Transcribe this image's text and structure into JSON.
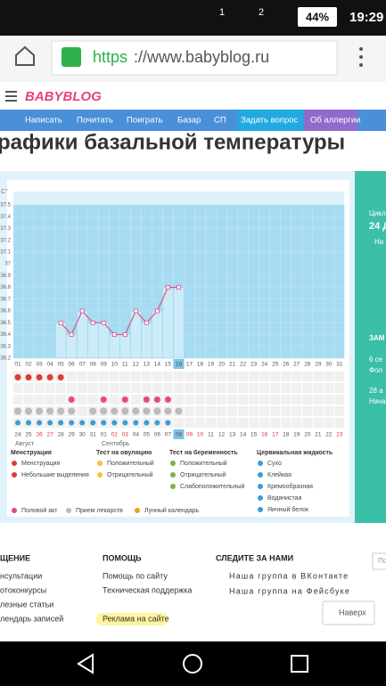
{
  "status": {
    "sim1": "1",
    "sim2": "2",
    "battery": "44%",
    "time": "19:29"
  },
  "browser": {
    "scheme": "https",
    "rest": "://www.babyblog.ru"
  },
  "site": {
    "logo": "BABYBLOG",
    "nav": [
      "Написать",
      "Почитать",
      "Поиграть",
      "Базар",
      "СП",
      "Задать вопрос",
      "Об аллергии"
    ],
    "heading": "рафики базальной температуры"
  },
  "chart_data": {
    "type": "line",
    "y_unit": "С°",
    "categories": [
      "01",
      "02",
      "03",
      "04",
      "05",
      "06",
      "07",
      "08",
      "09",
      "10",
      "11",
      "12",
      "13",
      "14",
      "15",
      "16",
      "17",
      "18",
      "19",
      "20",
      "21",
      "22",
      "23",
      "24",
      "25",
      "26",
      "27",
      "28",
      "29",
      "30",
      "31"
    ],
    "dates": [
      "24",
      "25",
      "26",
      "27",
      "28",
      "29",
      "30",
      "31",
      "01",
      "02",
      "03",
      "04",
      "05",
      "06",
      "07",
      "08",
      "09",
      "10",
      "11",
      "12",
      "13",
      "14",
      "15",
      "16",
      "17",
      "18",
      "19",
      "20",
      "21",
      "22",
      "23"
    ],
    "months": [
      "Август",
      "Сентябрь"
    ],
    "values": [
      null,
      null,
      null,
      null,
      36.5,
      36.4,
      36.6,
      36.5,
      36.5,
      36.4,
      36.4,
      36.6,
      36.5,
      36.6,
      36.8,
      36.8,
      null,
      null,
      null,
      null,
      null,
      null,
      null,
      null,
      null,
      null,
      null,
      null,
      null,
      null,
      null
    ],
    "color": "#e0508a",
    "ylim": [
      36.2,
      37.5
    ],
    "yticks": [
      36.2,
      36.3,
      36.4,
      36.5,
      36.6,
      36.7,
      36.8,
      36.9,
      37,
      37.1,
      37.2,
      37.3,
      37.4,
      37.5
    ],
    "menstruation_days": [
      1,
      2,
      3,
      4,
      5
    ],
    "intercourse_days": [
      6,
      9,
      11,
      13,
      14,
      15
    ],
    "pill_days": [
      1,
      2,
      3,
      4,
      5,
      6,
      8,
      9,
      10,
      11,
      12,
      13,
      14,
      15,
      16
    ],
    "fluid_days": [
      1,
      2,
      3,
      4,
      5,
      6,
      7,
      8,
      9,
      10,
      11,
      12,
      13,
      14,
      15
    ]
  },
  "legend": {
    "groups": [
      {
        "title": "Менструация",
        "items": [
          "Менструация",
          "Небольшие выделения"
        ]
      },
      {
        "title": "Тест на овуляцию",
        "items": [
          "Положительный",
          "Отрицательный"
        ]
      },
      {
        "title": "Тест на беременность",
        "items": [
          "Положительный",
          "Отрицательный",
          "Слабоположительный"
        ]
      },
      {
        "title": "Цервикальная жидкость",
        "items": [
          "Сухо",
          "Клейкая",
          "Кремообразная",
          "Водянистая",
          "Яичный белок"
        ]
      }
    ],
    "bottom": [
      "Половой акт",
      "Прием лекарств",
      "Лунный календарь"
    ]
  },
  "side": [
    "Цикл",
    "24 Д",
    "На",
    "ЗАМ",
    "6 се",
    "Фол",
    "28 а",
    "Нача"
  ],
  "footer": {
    "columns": [
      {
        "title": "ЩЕНИЕ",
        "items": [
          "нсультации",
          "отоконкурсы",
          "лезные статьи",
          "лендарь записей"
        ]
      },
      {
        "title": "ПОМОЩЬ",
        "items": [
          "Помощь по сайту",
          "Техническая поддержка",
          "Реклама на сайте"
        ]
      },
      {
        "title": "СЛЕДИТЕ ЗА НАМИ",
        "items": [
          "Наша группа в ВКонтакте",
          "Наша группа на Фейсбуке"
        ]
      }
    ],
    "top_button": "Наверх",
    "search": "По"
  }
}
